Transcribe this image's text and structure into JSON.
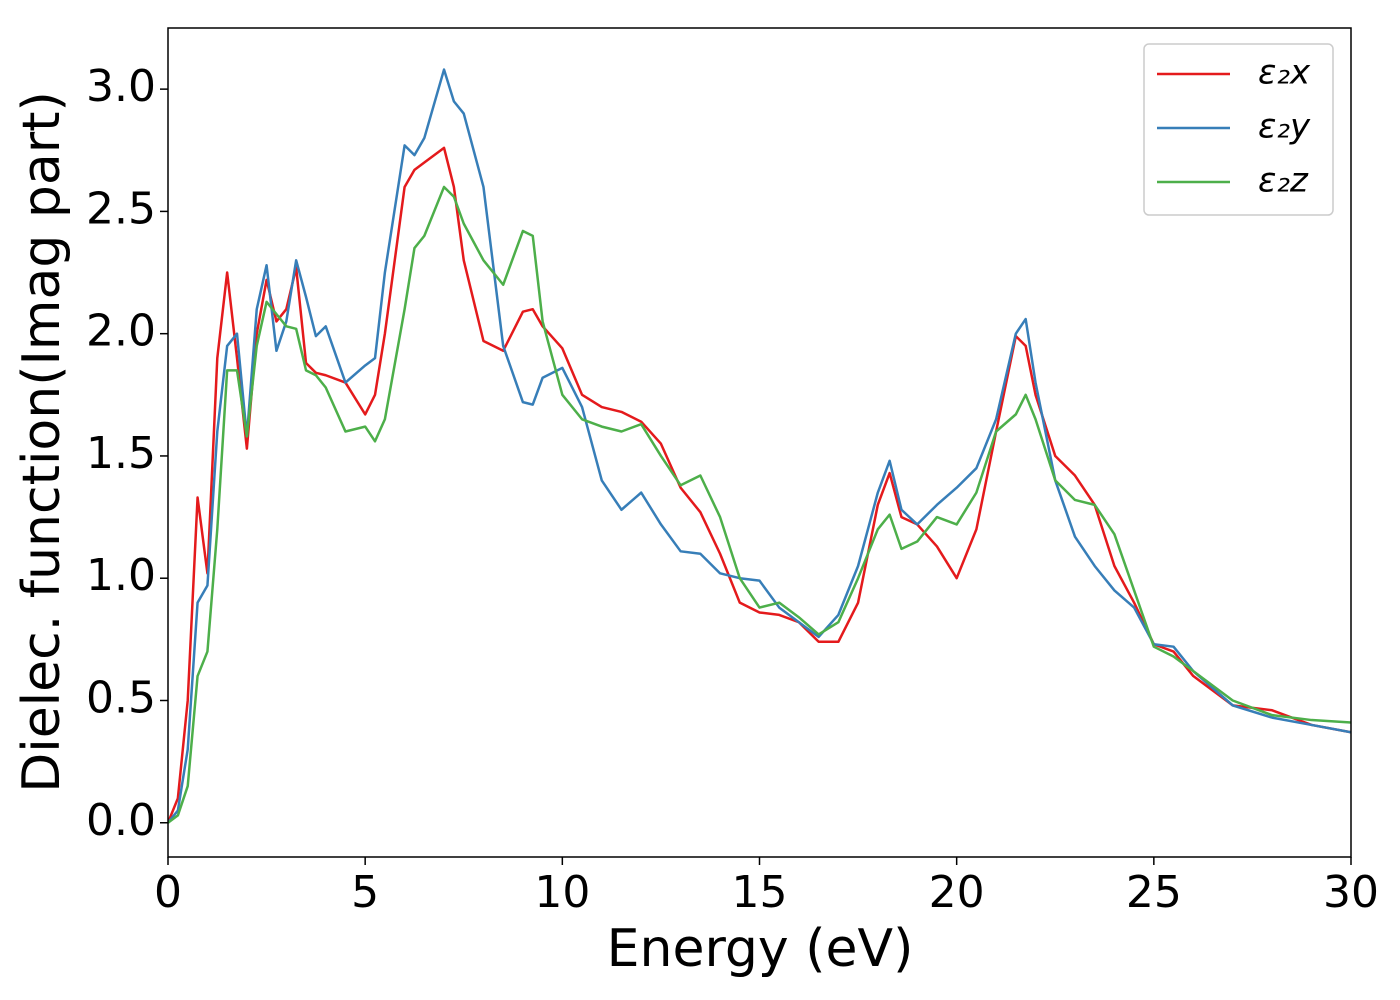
{
  "chart_data": {
    "type": "line",
    "xlabel": "Energy (eV)",
    "ylabel": "Dielec. function(Imag part)",
    "x": [
      0,
      0.25,
      0.5,
      0.75,
      1,
      1.25,
      1.5,
      1.75,
      2,
      2.25,
      2.5,
      2.75,
      3,
      3.25,
      3.5,
      3.75,
      4,
      4.5,
      5,
      5.25,
      5.5,
      6,
      6.25,
      6.5,
      7,
      7.25,
      7.5,
      8,
      8.5,
      9,
      9.25,
      9.5,
      10,
      10.5,
      11,
      11.5,
      12,
      12.5,
      13,
      13.5,
      14,
      14.5,
      15,
      15.5,
      16,
      16.5,
      17,
      17.5,
      18,
      18.3,
      18.6,
      19,
      19.5,
      20,
      20.5,
      21,
      21.5,
      21.75,
      22,
      22.5,
      23,
      23.5,
      24,
      24.5,
      25,
      25.5,
      26,
      27,
      28,
      29,
      30
    ],
    "series": [
      {
        "name": "ε₂x",
        "color": "#e41a1c",
        "values": [
          0,
          0.1,
          0.5,
          1.33,
          1.02,
          1.9,
          2.25,
          1.9,
          1.53,
          2.0,
          2.22,
          2.05,
          2.1,
          2.27,
          1.88,
          1.84,
          1.83,
          1.8,
          1.67,
          1.75,
          2.0,
          2.6,
          2.67,
          2.7,
          2.76,
          2.6,
          2.3,
          1.97,
          1.93,
          2.09,
          2.1,
          2.03,
          1.94,
          1.75,
          1.7,
          1.68,
          1.64,
          1.55,
          1.37,
          1.27,
          1.1,
          0.9,
          0.86,
          0.85,
          0.82,
          0.74,
          0.74,
          0.9,
          1.3,
          1.43,
          1.25,
          1.22,
          1.13,
          1.0,
          1.2,
          1.6,
          1.99,
          1.95,
          1.75,
          1.5,
          1.42,
          1.3,
          1.05,
          0.9,
          0.73,
          0.7,
          0.6,
          0.48,
          0.46,
          0.4,
          0.37
        ]
      },
      {
        "name": "ε₂y",
        "color": "#377eb8",
        "values": [
          0,
          0.05,
          0.3,
          0.9,
          0.97,
          1.6,
          1.95,
          2.0,
          1.58,
          2.1,
          2.28,
          1.93,
          2.05,
          2.3,
          2.15,
          1.99,
          2.03,
          1.8,
          1.87,
          1.9,
          2.25,
          2.77,
          2.73,
          2.8,
          3.08,
          2.95,
          2.9,
          2.6,
          1.95,
          1.72,
          1.71,
          1.82,
          1.86,
          1.7,
          1.4,
          1.28,
          1.35,
          1.22,
          1.11,
          1.1,
          1.02,
          1.0,
          0.99,
          0.88,
          0.82,
          0.76,
          0.85,
          1.05,
          1.35,
          1.48,
          1.28,
          1.22,
          1.3,
          1.37,
          1.45,
          1.65,
          2.0,
          2.06,
          1.8,
          1.4,
          1.17,
          1.05,
          0.95,
          0.88,
          0.73,
          0.72,
          0.62,
          0.48,
          0.43,
          0.4,
          0.37
        ]
      },
      {
        "name": "ε₂z",
        "color": "#4daf4a",
        "values": [
          0,
          0.03,
          0.15,
          0.6,
          0.7,
          1.2,
          1.85,
          1.85,
          1.58,
          1.95,
          2.13,
          2.08,
          2.03,
          2.02,
          1.85,
          1.83,
          1.78,
          1.6,
          1.62,
          1.56,
          1.65,
          2.1,
          2.35,
          2.4,
          2.6,
          2.56,
          2.45,
          2.3,
          2.2,
          2.42,
          2.4,
          2.05,
          1.75,
          1.65,
          1.62,
          1.6,
          1.63,
          1.5,
          1.38,
          1.42,
          1.25,
          1.0,
          0.88,
          0.9,
          0.84,
          0.77,
          0.82,
          1.0,
          1.2,
          1.26,
          1.12,
          1.15,
          1.25,
          1.22,
          1.35,
          1.6,
          1.67,
          1.75,
          1.65,
          1.4,
          1.32,
          1.3,
          1.18,
          0.95,
          0.72,
          0.68,
          0.62,
          0.5,
          0.44,
          0.42,
          0.41
        ]
      }
    ],
    "xlim": [
      0,
      30
    ],
    "xticks": [
      0,
      5,
      10,
      15,
      20,
      25,
      30
    ],
    "ylim": [
      -0.14,
      3.25
    ],
    "yticks": [
      {
        "value": 0,
        "label": "0.0"
      },
      {
        "value": 0.5,
        "label": "0.5"
      },
      {
        "value": 1,
        "label": "1.0"
      },
      {
        "value": 1.5,
        "label": "1.5"
      },
      {
        "value": 2,
        "label": "2.0"
      },
      {
        "value": 2.5,
        "label": "2.5"
      },
      {
        "value": 3,
        "label": "3.0"
      }
    ],
    "legend": "upper right",
    "grid": false
  }
}
